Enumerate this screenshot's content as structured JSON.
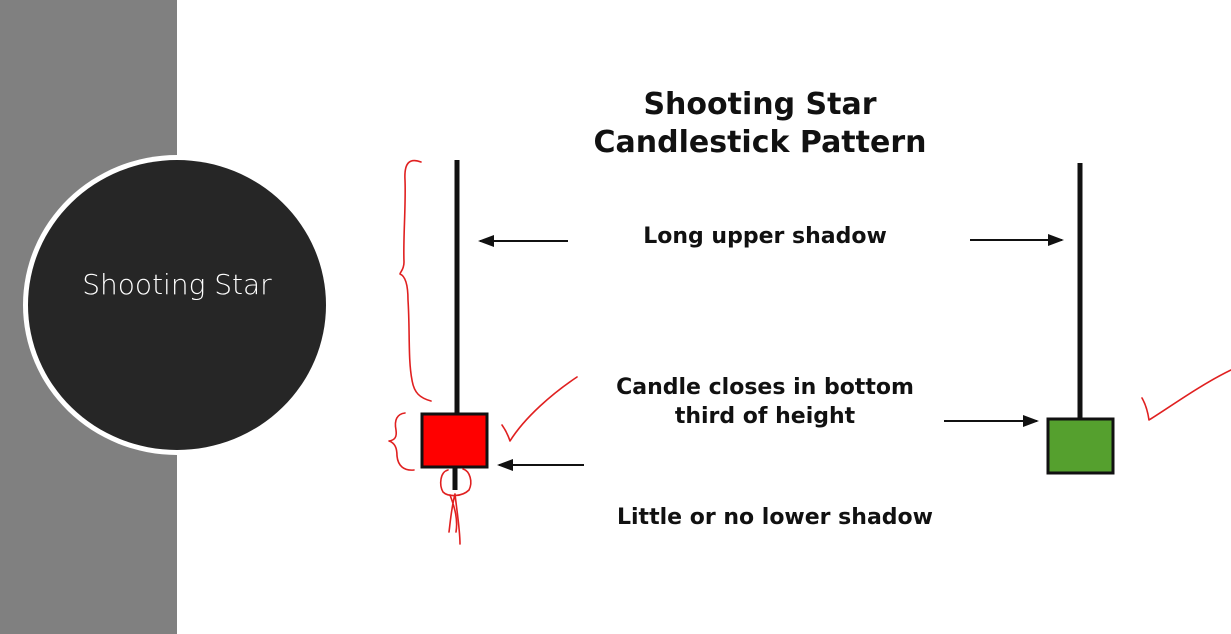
{
  "slide": {
    "title": "Shooting Star"
  },
  "diagram": {
    "title_line1": "Shooting Star",
    "title_line2": "Candlestick Pattern",
    "label_upper_shadow": "Long upper shadow",
    "label_close_line1": "Candle closes in bottom",
    "label_close_line2": "third of height",
    "label_lower_shadow": "Little or no lower shadow",
    "colors": {
      "bearish_candle": "#ff0000",
      "bullish_candle": "#55a02e",
      "annotation_ink": "#e02020"
    }
  }
}
